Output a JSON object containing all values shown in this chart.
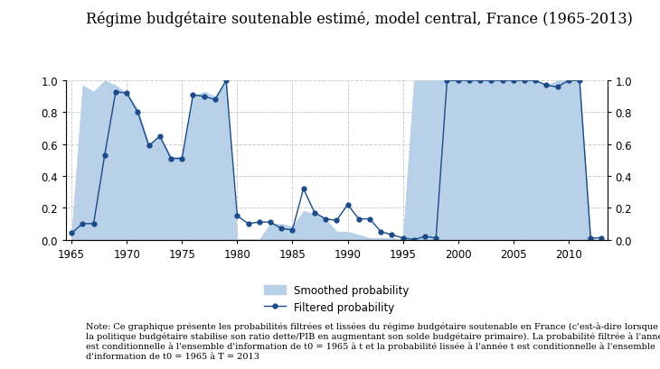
{
  "title": "Régime budgétaire soutenable estimé, model central, France (1965-2013)",
  "years": [
    1965,
    1966,
    1967,
    1968,
    1969,
    1970,
    1971,
    1972,
    1973,
    1974,
    1975,
    1976,
    1977,
    1978,
    1979,
    1980,
    1981,
    1982,
    1983,
    1984,
    1985,
    1986,
    1987,
    1988,
    1989,
    1990,
    1991,
    1992,
    1993,
    1994,
    1995,
    1996,
    1997,
    1998,
    1999,
    2000,
    2001,
    2002,
    2003,
    2004,
    2005,
    2006,
    2007,
    2008,
    2009,
    2010,
    2011,
    2012,
    2013
  ],
  "smoothed": [
    0.03,
    0.97,
    0.93,
    1.0,
    0.97,
    0.92,
    0.82,
    0.6,
    0.65,
    0.52,
    0.52,
    0.9,
    0.93,
    0.9,
    1.0,
    0.0,
    0.0,
    0.0,
    0.1,
    0.1,
    0.08,
    0.18,
    0.16,
    0.13,
    0.05,
    0.05,
    0.03,
    0.01,
    0.01,
    0.01,
    0.0,
    1.0,
    1.0,
    1.0,
    1.0,
    1.0,
    1.0,
    1.0,
    1.0,
    1.0,
    1.0,
    1.0,
    1.0,
    0.97,
    1.0,
    1.0,
    1.0,
    0.0,
    0.0
  ],
  "filtered": [
    0.04,
    0.1,
    0.1,
    0.53,
    0.93,
    0.92,
    0.8,
    0.59,
    0.65,
    0.51,
    0.51,
    0.91,
    0.9,
    0.88,
    1.0,
    0.15,
    0.1,
    0.11,
    0.11,
    0.07,
    0.06,
    0.32,
    0.17,
    0.13,
    0.12,
    0.22,
    0.13,
    0.13,
    0.05,
    0.03,
    0.01,
    0.0,
    0.02,
    0.01,
    1.0,
    1.0,
    1.0,
    1.0,
    1.0,
    1.0,
    1.0,
    1.0,
    1.0,
    0.97,
    0.96,
    1.0,
    1.0,
    0.01,
    0.01
  ],
  "smoothed_color": "#b8d0e8",
  "filtered_color": "#1a4a8a",
  "background_color": "#ffffff",
  "note": "Note: Ce graphique présente les probabilités filtrées et lissées du régime budgétaire soutenable en France (c'est-à-dire lorsque\nla politique budgétaire stabilise son ratio dette/PIB en augmentant son solde budgétaire primaire). La probabilité filtrée à l'année t\nest conditionnelle à l'ensemble d'information de t0 = 1965 à t et la probabilité lissée à l'année t est conditionnelle à l'ensemble\nd'information de t0 = 1965 à T = 2013",
  "legend_smoothed": "Smoothed probability",
  "legend_filtered": "Filtered probability",
  "xlim": [
    1964.5,
    2013.5
  ],
  "ylim": [
    0.0,
    1.0
  ],
  "xticks": [
    1965,
    1970,
    1975,
    1980,
    1985,
    1990,
    1995,
    2000,
    2005,
    2010
  ],
  "yticks": [
    0.0,
    0.2,
    0.4,
    0.6,
    0.8,
    1.0
  ]
}
